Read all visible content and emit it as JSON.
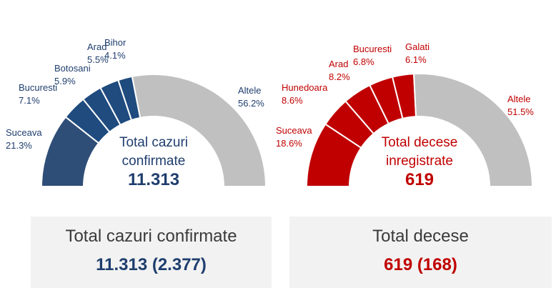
{
  "chart_data": [
    {
      "type": "pie",
      "subtype": "half-donut",
      "categories": [
        "Suceava",
        "Bucuresti",
        "Botosani",
        "Arad",
        "Bihor",
        "Altele"
      ],
      "values": [
        21.3,
        7.1,
        5.9,
        5.5,
        4.1,
        56.2
      ],
      "value_labels": [
        "21.3%",
        "7.1%",
        "5.9%",
        "5.5%",
        "4.1%",
        "56.2%"
      ],
      "colors": [
        "#2f4e77",
        "#1f4b7e",
        "#1f4b7e",
        "#1f4b7e",
        "#1f4b7e",
        "#c0c0c0"
      ],
      "center_label": [
        "Total cazuri",
        "confirmate"
      ],
      "center_value": "11.313",
      "label_color": "#1f3e6e"
    },
    {
      "type": "pie",
      "subtype": "half-donut",
      "categories": [
        "Suceava",
        "Hunedoara",
        "Arad",
        "Bucuresti",
        "Galati",
        "Altele"
      ],
      "values": [
        18.6,
        8.6,
        8.2,
        6.8,
        6.1,
        51.5
      ],
      "value_labels": [
        "18.6%",
        "8.6%",
        "8.2%",
        "6.8%",
        "6.1%",
        "51.5%"
      ],
      "colors": [
        "#c00000",
        "#c00000",
        "#c00000",
        "#c00000",
        "#c00000",
        "#c0c0c0"
      ],
      "center_label": [
        "Total decese",
        "inregistrate"
      ],
      "center_value": "619",
      "label_color": "#c00000"
    }
  ],
  "summary_boxes": [
    {
      "title": "Total cazuri confirmate",
      "value": "11.313 (2.377)",
      "value_color": "#1f3e6e"
    },
    {
      "title": "Total decese",
      "value": "619 (168)",
      "value_color": "#c00000"
    }
  ]
}
